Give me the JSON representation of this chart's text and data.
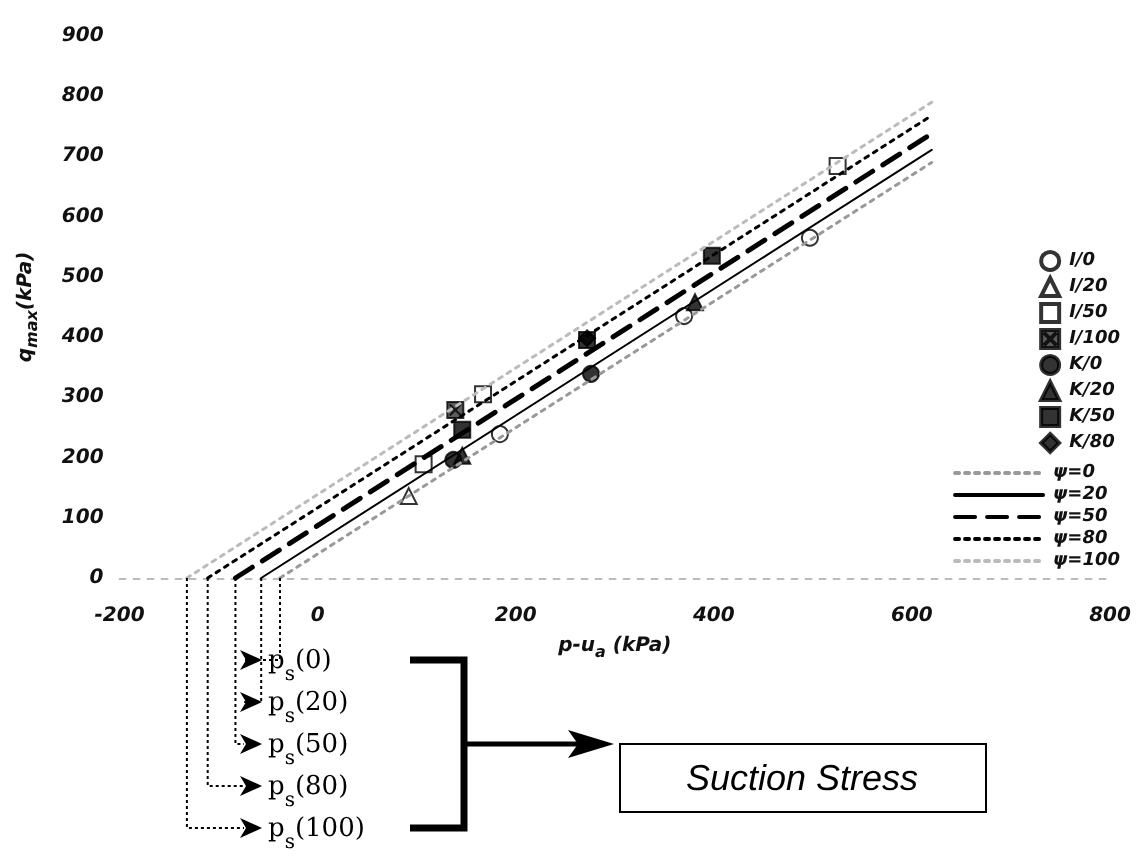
{
  "chart_data": {
    "type": "scatter",
    "xlabel": "p-u$_{a}$ (kPa)",
    "ylabel": "q$_{max}$(kPa)",
    "xlim": [
      -200,
      800
    ],
    "xticks": [
      -200,
      0,
      200,
      400,
      600,
      800
    ],
    "ylim": [
      0,
      900
    ],
    "yticks": [
      0,
      100,
      200,
      300,
      400,
      500,
      600,
      700,
      800,
      900
    ],
    "grid": false,
    "legend": "right",
    "series": [
      {
        "name": "I/0",
        "marker": "circle",
        "color": "#ffffff",
        "x": [
          184,
          370,
          497
        ],
        "values": [
          239,
          435,
          565
        ]
      },
      {
        "name": "I/20",
        "marker": "triangle",
        "color": "#ffffff",
        "x": [
          92
        ],
        "values": [
          136
        ]
      },
      {
        "name": "I/50",
        "marker": "square",
        "color": "#ffffff",
        "x": [
          107,
          167,
          525
        ],
        "values": [
          189,
          305,
          684
        ]
      },
      {
        "name": "I/100",
        "marker": "cross",
        "color": "#333333",
        "x": [
          139
        ],
        "values": [
          279
        ]
      },
      {
        "name": "K/0",
        "marker": "circle",
        "color": "#000000",
        "x": [
          137,
          276
        ],
        "values": [
          196,
          339
        ]
      },
      {
        "name": "K/20",
        "marker": "triangle",
        "color": "#000000",
        "x": [
          146,
          381
        ],
        "values": [
          203,
          458
        ]
      },
      {
        "name": "K/50",
        "marker": "square",
        "color": "#000000",
        "x": [
          146,
          272,
          398
        ],
        "values": [
          246,
          395,
          535
        ]
      },
      {
        "name": "K/80",
        "marker": "diamond",
        "color": "#000000",
        "x": [
          272
        ],
        "values": [
          398
        ]
      },
      {
        "name": "ψ=0",
        "type": "line",
        "line_style": "dotted",
        "color": "#999999",
        "x": [
          -38,
          620
        ],
        "values": [
          0,
          690
        ]
      },
      {
        "name": "ψ=20",
        "type": "line",
        "line_style": "solid",
        "color": "#000000",
        "x": [
          -57,
          620
        ],
        "values": [
          0,
          711
        ]
      },
      {
        "name": "ψ=50",
        "type": "line",
        "line_style": "dashed",
        "color": "#000000",
        "x": [
          -83,
          620
        ],
        "values": [
          0,
          738
        ]
      },
      {
        "name": "ψ=80",
        "type": "line",
        "line_style": "dotted",
        "color": "#000000",
        "x": [
          -111,
          620
        ],
        "values": [
          0,
          768
        ]
      },
      {
        "name": "ψ=100",
        "type": "line",
        "line_style": "dotted",
        "color": "#bbbbbb",
        "x": [
          -132,
          620
        ],
        "values": [
          0,
          790
        ]
      }
    ],
    "annotations": [
      {
        "text": "p$_{s}$(0)",
        "x": -38,
        "y": 0
      },
      {
        "text": "p$_{s}$(20)",
        "x": -57,
        "y": 0
      },
      {
        "text": "p$_{s}$(50)",
        "x": -83,
        "y": 0
      },
      {
        "text": "p$_{s}$(80)",
        "x": -111,
        "y": 0
      },
      {
        "text": "p$_{s}$(100)",
        "x": -132,
        "y": 0
      },
      "Suction Stress"
    ]
  }
}
